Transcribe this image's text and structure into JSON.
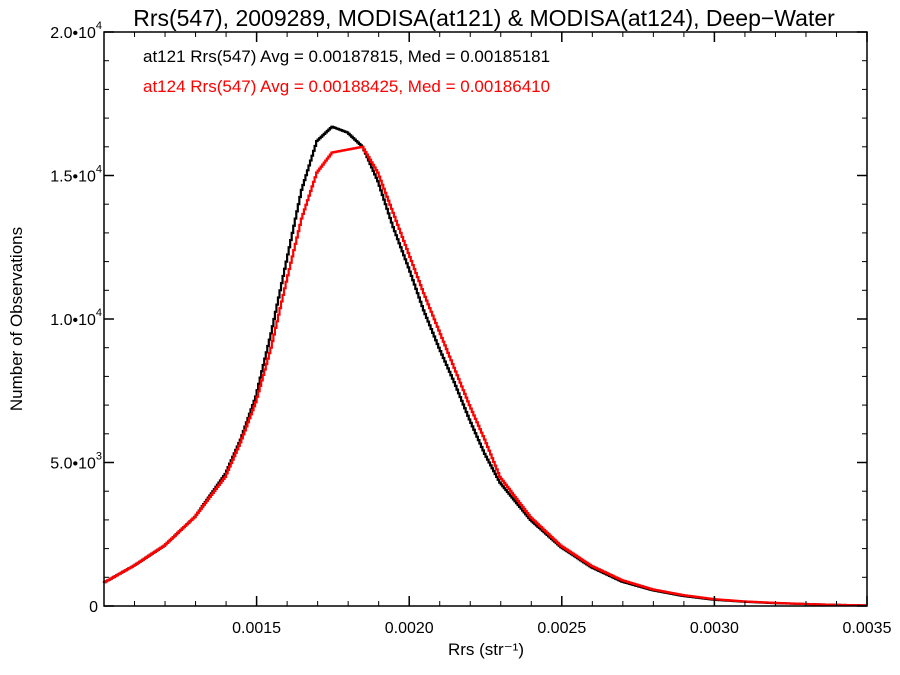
{
  "chart_data": {
    "type": "line",
    "title": "Rrs(547), 2009289, MODISA(at121) & MODISA(at124), Deep−Water",
    "xlabel": "Rrs (str⁻¹)",
    "ylabel": "Number of Observations",
    "xlim": [
      0.001,
      0.0035
    ],
    "ylim": [
      0,
      20000
    ],
    "grid": false,
    "line_style": "histogram-step",
    "x_ticks": [
      0.0015,
      0.002,
      0.0025,
      0.003,
      0.0035
    ],
    "x_tick_labels": [
      "0.0015",
      "0.0020",
      "0.0025",
      "0.0030",
      "0.0035"
    ],
    "y_ticks": [
      0,
      5000,
      10000,
      15000,
      20000
    ],
    "y_tick_labels": [
      {
        "mantissa": "0",
        "exponent": ""
      },
      {
        "mantissa": "5.0•10",
        "exponent": "3"
      },
      {
        "mantissa": "1.0•10",
        "exponent": "4"
      },
      {
        "mantissa": "1.5•10",
        "exponent": "4"
      },
      {
        "mantissa": "2.0•10",
        "exponent": "4"
      }
    ],
    "annotations": [
      {
        "text": "at121 Rrs(547) Avg = 0.00187815, Med = 0.00185181",
        "color": "#000000"
      },
      {
        "text": "at124 Rrs(547) Avg = 0.00188425, Med = 0.00186410",
        "color": "#ff0000"
      }
    ],
    "x": [
      0.001,
      0.0011,
      0.0012,
      0.0013,
      0.0014,
      0.00145,
      0.0015,
      0.00155,
      0.0016,
      0.00165,
      0.0017,
      0.00175,
      0.0018,
      0.00185,
      0.0019,
      0.00195,
      0.002,
      0.00205,
      0.0021,
      0.00215,
      0.0022,
      0.00225,
      0.0023,
      0.0024,
      0.0025,
      0.0026,
      0.0027,
      0.0028,
      0.0029,
      0.003,
      0.0031,
      0.0032,
      0.0033,
      0.0034,
      0.0035
    ],
    "series": [
      {
        "name": "at121",
        "color": "#000000",
        "values": [
          800,
          1400,
          2100,
          3100,
          4600,
          5800,
          7300,
          9500,
          12000,
          14500,
          16200,
          16700,
          16500,
          16000,
          14800,
          13200,
          11800,
          10300,
          9000,
          7800,
          6500,
          5300,
          4300,
          3000,
          2050,
          1350,
          850,
          550,
          350,
          220,
          150,
          100,
          70,
          40,
          20
        ]
      },
      {
        "name": "at124",
        "color": "#ff0000",
        "values": [
          800,
          1400,
          2100,
          3100,
          4500,
          5700,
          7100,
          9000,
          11300,
          13500,
          15100,
          15800,
          15900,
          16000,
          15100,
          13700,
          12300,
          10900,
          9600,
          8300,
          7000,
          5800,
          4500,
          3100,
          2100,
          1400,
          900,
          580,
          380,
          240,
          160,
          110,
          70,
          40,
          20
        ]
      }
    ]
  }
}
